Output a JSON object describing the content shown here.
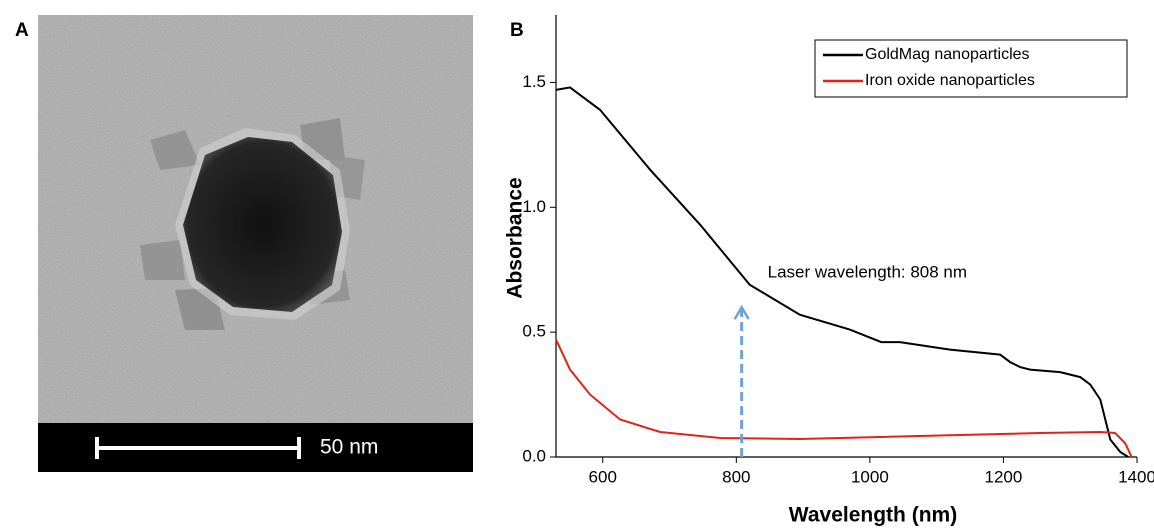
{
  "panel_a": {
    "label": "A",
    "scale_bar": "50 nm"
  },
  "chart_data": {
    "type": "line",
    "panel_label": "B",
    "x_label": "Wavelength (nm)",
    "y_label": "Absorbance",
    "xlim": [
      530,
      1400
    ],
    "ylim": [
      0,
      1.77
    ],
    "xticks": [
      600,
      800,
      1000,
      1200,
      1400
    ],
    "yticks": [
      {
        "value": 0,
        "label": "0.0"
      },
      0.5,
      {
        "value": 1,
        "label": "1.0"
      },
      1.5
    ],
    "legend": "upper right",
    "series": [
      {
        "name": "GoldMag nanoparticles",
        "color": "#000000",
        "x": [
          530,
          551,
          596,
          671,
          746,
          820,
          895,
          970,
          1017,
          1045,
          1120,
          1195,
          1210,
          1225,
          1240,
          1285,
          1315,
          1330,
          1345,
          1360,
          1375,
          1387
        ],
        "values": [
          1.47,
          1.48,
          1.39,
          1.15,
          0.93,
          0.69,
          0.57,
          0.51,
          0.46,
          0.46,
          0.43,
          0.41,
          0.38,
          0.36,
          0.35,
          0.34,
          0.32,
          0.29,
          0.23,
          0.07,
          0.02,
          0
        ]
      },
      {
        "name": "Iron oxide nanoparticles",
        "color": "#e2231a",
        "x": [
          530,
          551,
          581,
          626,
          686,
          776,
          895,
          1015,
          1135,
          1255,
          1345,
          1367,
          1382,
          1392
        ],
        "values": [
          0.47,
          0.35,
          0.25,
          0.15,
          0.1,
          0.076,
          0.072,
          0.08,
          0.088,
          0.096,
          0.1,
          0.096,
          0.056,
          0
        ]
      }
    ],
    "annotation": {
      "text": "Laser wavelength: 808 nm",
      "x": 808,
      "y": 0.6,
      "color": "#6fa3d2"
    }
  }
}
